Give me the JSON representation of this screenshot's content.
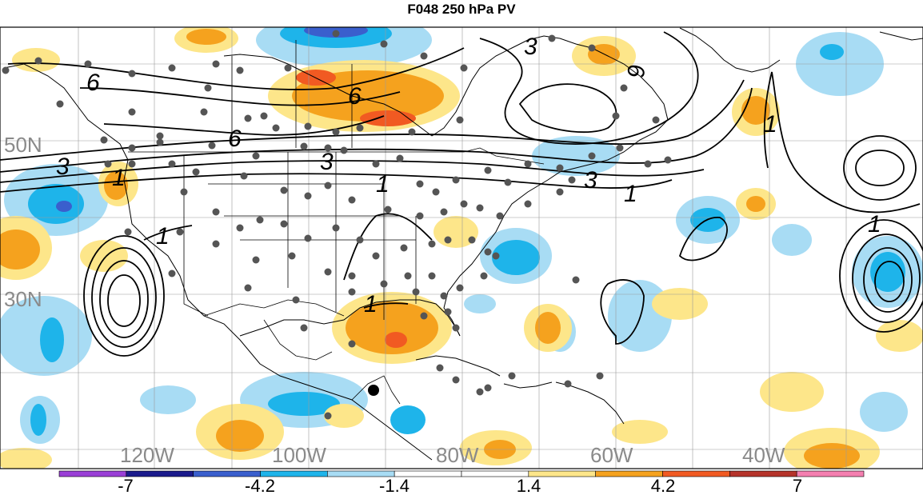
{
  "title": "F048 250 hPa PV",
  "map": {
    "latitude_labels": [
      "50N",
      "30N"
    ],
    "longitude_labels": [
      "120W",
      "100W",
      "80W",
      "60W",
      "40W"
    ],
    "contour_labels": [
      {
        "text": "6"
      },
      {
        "text": "6"
      },
      {
        "text": "6"
      },
      {
        "text": "6"
      },
      {
        "text": "3"
      },
      {
        "text": "3"
      },
      {
        "text": "3"
      },
      {
        "text": "3"
      },
      {
        "text": "1"
      },
      {
        "text": "1"
      },
      {
        "text": "1"
      },
      {
        "text": "1"
      },
      {
        "text": "1"
      },
      {
        "text": "1"
      },
      {
        "text": "1"
      }
    ],
    "station_marker_color": "#555555",
    "highlight_marker_color": "#000000"
  },
  "colorbar": {
    "colors": [
      "#9a3fd6",
      "#1a1a8c",
      "#3a5fcd",
      "#1eb4ea",
      "#a8dcf4",
      "#ffffff",
      "#ffffff",
      "#fde68a",
      "#f5a21e",
      "#f15a22",
      "#b5332a",
      "#f47fb0"
    ],
    "labels": [
      "-7",
      "-4.2",
      "-1.4",
      "1.4",
      "4.2",
      "7"
    ]
  },
  "colors": {
    "light_blue": "#a8dcf4",
    "mid_blue": "#1eb4ea",
    "dark_blue": "#3a5fcd",
    "light_yellow": "#fde68a",
    "orange": "#f5a21e",
    "red_orange": "#f15a22"
  }
}
